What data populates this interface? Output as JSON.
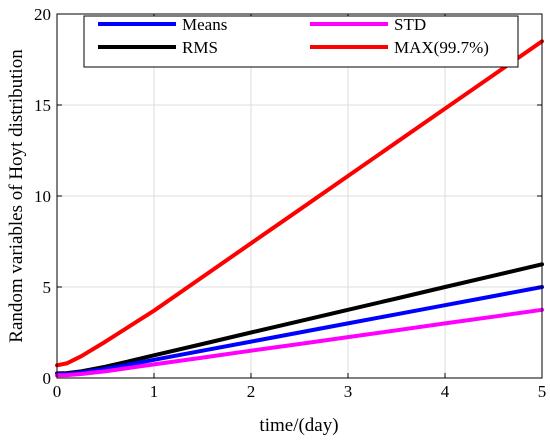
{
  "chart_data": {
    "type": "line",
    "xlabel": "time/(day)",
    "ylabel": "Random variables of Hoyt distribution",
    "xlim": [
      0,
      5
    ],
    "ylim": [
      0,
      20
    ],
    "xticks": [
      "0",
      "1",
      "2",
      "3",
      "4",
      "5"
    ],
    "yticks": [
      "0",
      "5",
      "10",
      "15",
      "20"
    ],
    "grid": true,
    "legend": "top, two columns",
    "x": [
      0,
      0.1,
      0.25,
      0.5,
      0.75,
      1,
      1.5,
      2,
      2.5,
      3,
      3.5,
      4,
      4.5,
      5
    ],
    "series": [
      {
        "name": "Means",
        "color": "#0000ff",
        "values": [
          0.2,
          0.22,
          0.3,
          0.5,
          0.75,
          1.0,
          1.5,
          2.0,
          2.5,
          3.0,
          3.5,
          4.0,
          4.5,
          5.0
        ]
      },
      {
        "name": "RMS",
        "color": "#000000",
        "values": [
          0.25,
          0.27,
          0.36,
          0.62,
          0.93,
          1.25,
          1.87,
          2.5,
          3.12,
          3.75,
          4.37,
          5.0,
          5.62,
          6.25
        ]
      },
      {
        "name": "STD",
        "color": "#ff00ff",
        "values": [
          0.15,
          0.16,
          0.22,
          0.37,
          0.56,
          0.75,
          1.12,
          1.5,
          1.87,
          2.25,
          2.62,
          3.0,
          3.37,
          3.75
        ]
      },
      {
        "name": "MAX(99.7%)",
        "color": "#ff0000",
        "values": [
          0.7,
          0.8,
          1.2,
          2.0,
          2.85,
          3.7,
          5.55,
          7.4,
          9.25,
          11.1,
          12.95,
          14.8,
          16.65,
          18.5
        ]
      }
    ]
  }
}
